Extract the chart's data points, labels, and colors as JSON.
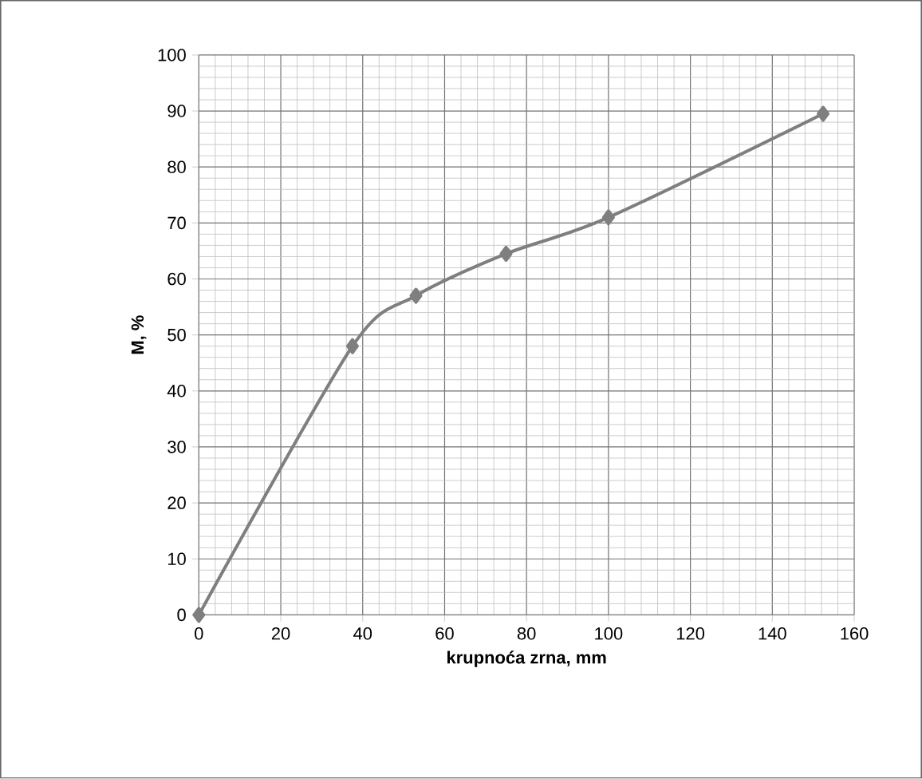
{
  "chart_data": {
    "type": "line",
    "xlabel": "krupnoća zrna, mm",
    "ylabel": "M, %",
    "x": [
      0,
      37.5,
      53,
      75,
      100,
      152.4
    ],
    "series": [
      {
        "color": "#7f7f7f",
        "values": [
          0,
          48,
          57,
          64.5,
          71,
          89.5
        ]
      }
    ],
    "xlim": [
      0,
      160
    ],
    "xticks": [
      0,
      20,
      40,
      60,
      80,
      100,
      120,
      140,
      160
    ],
    "ylim": [
      0,
      100
    ],
    "yticks": [
      0,
      10,
      20,
      30,
      40,
      50,
      60,
      70,
      80,
      90,
      100
    ],
    "grid": true,
    "marker": "diamond",
    "line_style": "solid"
  }
}
